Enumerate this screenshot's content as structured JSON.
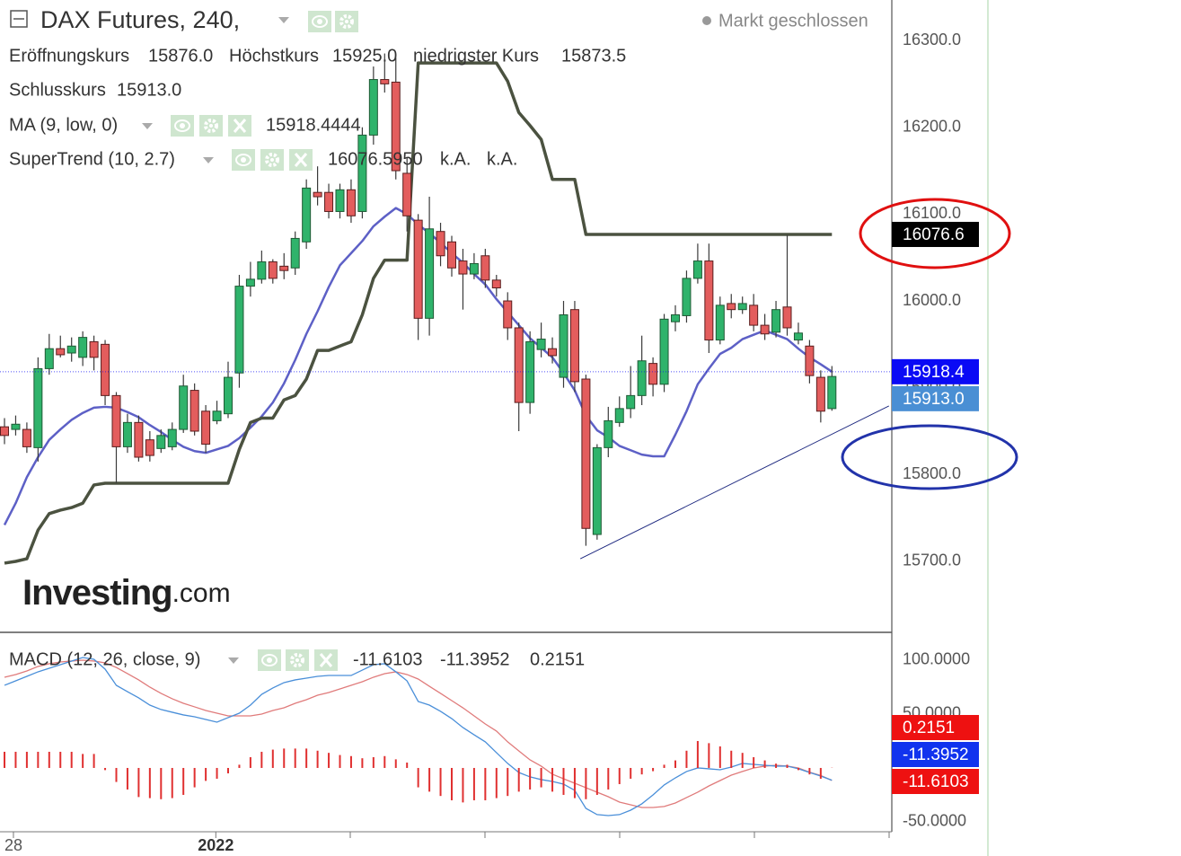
{
  "chart_data": [
    {
      "type": "candlestick",
      "title": "DAX Futures, 240,",
      "status": "Markt geschlossen",
      "watermark": {
        "brand": "Investing",
        "suffix": ".com"
      },
      "legend": [
        {
          "name": "Eröffnungskurs",
          "value": "15876.0"
        },
        {
          "name": "Höchstkurs",
          "value": "15925.0"
        },
        {
          "name": "niedrigster Kurs",
          "value": "15873.5"
        },
        {
          "name": "Schlusskurs",
          "value": "15913.0"
        }
      ],
      "legend_value_color": "#24602c",
      "up_color": "#2fb36b",
      "down_color": "#e35d5d",
      "open": [
        15855,
        15852,
        15852,
        15831,
        15922,
        15945,
        15940,
        15935,
        15953,
        15950,
        15891,
        15832,
        15860,
        15840,
        15830,
        15832,
        15852,
        15897,
        15873,
        15862,
        15870,
        15917,
        16017,
        16025,
        16045,
        16040,
        16038,
        16068,
        16125,
        16125,
        16103,
        16128,
        16103,
        16191,
        16255,
        16252,
        16147,
        16093,
        15980,
        16080,
        16068,
        16046,
        16031,
        16052,
        16024,
        16000,
        15969,
        15883,
        15944,
        15945,
        15912,
        15990,
        15910,
        15731,
        15831,
        15860,
        15876,
        15891,
        15928,
        15904,
        15976,
        15983,
        16026,
        16046,
        15955,
        15997,
        15990,
        15995,
        15972,
        15964,
        15993,
        15955,
        15948,
        15912,
        15876
      ],
      "high": [
        15865,
        15868,
        15860,
        15935,
        15962,
        15960,
        15958,
        15965,
        15960,
        15955,
        15895,
        15870,
        15868,
        15850,
        15852,
        15860,
        15915,
        15905,
        15880,
        15885,
        15930,
        16030,
        16045,
        16058,
        16048,
        16055,
        16080,
        16140,
        16155,
        16135,
        16135,
        16140,
        16200,
        16270,
        16285,
        16280,
        16165,
        16100,
        16120,
        16090,
        16075,
        16060,
        16055,
        16060,
        16030,
        16010,
        15975,
        15965,
        15975,
        15958,
        16000,
        16000,
        15915,
        15835,
        15878,
        15890,
        15925,
        15960,
        15935,
        15985,
        15995,
        16035,
        16066,
        16066,
        16005,
        16008,
        16005,
        16008,
        15985,
        16000,
        16076,
        15975,
        15955,
        15920,
        15925
      ],
      "low": [
        15835,
        15845,
        15825,
        15815,
        15915,
        15935,
        15930,
        15925,
        15920,
        15880,
        15790,
        15825,
        15815,
        15815,
        15825,
        15828,
        15848,
        15845,
        15825,
        15858,
        15865,
        15900,
        16005,
        16020,
        16020,
        16025,
        16030,
        16060,
        16110,
        16095,
        16095,
        16090,
        16095,
        16180,
        16240,
        16140,
        16080,
        15955,
        15960,
        16040,
        16028,
        15990,
        16025,
        16015,
        16005,
        15955,
        15850,
        15870,
        15935,
        15928,
        15900,
        15895,
        15718,
        15725,
        15820,
        15855,
        15865,
        15880,
        15890,
        15895,
        15965,
        15975,
        16020,
        15940,
        15950,
        15980,
        15985,
        15965,
        15955,
        15958,
        15960,
        15950,
        15905,
        15860,
        15873.5
      ],
      "close": [
        15845,
        15858,
        15832,
        15922,
        15945,
        15938,
        15948,
        15958,
        15935,
        15891,
        15832,
        15860,
        15820,
        15822,
        15845,
        15852,
        15902,
        15850,
        15835,
        15873,
        15912,
        16017,
        16025,
        16045,
        16026,
        16035,
        16072,
        16130,
        16120,
        16103,
        16128,
        16098,
        16191,
        16255,
        16250,
        16150,
        16098,
        15980,
        16083,
        16052,
        16038,
        16031,
        16043,
        16024,
        16015,
        15969,
        15883,
        15953,
        15956,
        15937,
        15984,
        15907,
        15738,
        15831,
        15862,
        15876,
        15891,
        15931,
        15904,
        15979,
        15984,
        16026,
        16046,
        15955,
        15995,
        15990,
        15997,
        15972,
        15962,
        15990,
        15969,
        15963,
        15914,
        15873,
        15913
      ],
      "series": [
        {
          "name": "MA (9, low, 0)",
          "color": "#5d60c6",
          "width": 2.5,
          "legend_values": [
            "15918.4444"
          ],
          "legend_colors": [
            "#1a1ad0"
          ],
          "values": [
            15742,
            15767,
            15797,
            15820,
            15840,
            15852,
            15863,
            15871,
            15877,
            15878,
            15877,
            15872,
            15866,
            15857,
            15849,
            15840,
            15832,
            15827,
            15825,
            15829,
            15833,
            15842,
            15854,
            15867,
            15883,
            15905,
            15932,
            15962,
            15988,
            16016,
            16041,
            16055,
            16069,
            16086,
            16097,
            16107,
            16100,
            16088,
            16078,
            16067,
            16055,
            16044,
            16031,
            16019,
            16002,
            15987,
            15972,
            15957,
            15946,
            15935,
            15917,
            15897,
            15868,
            15851,
            15843,
            15833,
            15828,
            15823,
            15821,
            15821,
            15846,
            15873,
            15904,
            15922,
            15939,
            15946,
            15956,
            15961,
            15966,
            15961,
            15956,
            15945,
            15935,
            15927,
            15918.4444
          ]
        },
        {
          "name": "SuperTrend (10, 2.7)",
          "color": "#4b5240",
          "width": 3.5,
          "legend_values": [
            "16076.5950",
            "k.A.",
            "k.A."
          ],
          "legend_colors": [
            "#111111",
            "#555555",
            "#555555"
          ],
          "values": [
            15698,
            15700,
            15703,
            15736,
            15755,
            15759,
            15762,
            15767,
            15788,
            15790,
            15790,
            15790,
            15790,
            15790,
            15790,
            15790,
            15790,
            15790,
            15790,
            15790,
            15790,
            15829,
            15860,
            15865,
            15865,
            15886,
            15891,
            15910,
            15943,
            15943,
            15948,
            15953,
            15984,
            16026,
            16047,
            16047,
            16047,
            16274,
            16274,
            16274,
            16274,
            16274,
            16274,
            16274,
            16274,
            16253,
            16217,
            16202,
            16186,
            16140,
            16140,
            16140,
            16076.595,
            16076.595,
            16076.595,
            16076.595,
            16076.595,
            16076.595,
            16076.595,
            16076.595,
            16076.595,
            16076.595,
            16076.595,
            16076.595,
            16076.595,
            16076.595,
            16076.595,
            16076.595,
            16076.595,
            16076.595,
            16076.595,
            16076.595,
            16076.595,
            16076.595,
            16076.595
          ]
        }
      ],
      "trendline": {
        "x": [
          51.5,
          79.1
        ],
        "values": [
          15703,
          15879
        ],
        "color": "#1f2a80"
      },
      "ylim": [
        15619.3,
        16346.6
      ],
      "yticks": [
        {
          "value": 15700,
          "label": "15700.0"
        },
        {
          "value": 15800,
          "label": "15800.0"
        },
        {
          "value": 15900,
          "label": "15900.0"
        },
        {
          "value": 16000,
          "label": "16000.0"
        },
        {
          "value": 16100,
          "label": "16100.0"
        },
        {
          "value": 16200,
          "label": "16200.0"
        },
        {
          "value": 16300,
          "label": "16300.0"
        }
      ],
      "xticks": [
        {
          "value": 0.8,
          "label": "28"
        },
        {
          "value": 18.9,
          "label": "2022"
        }
      ],
      "price_tags": [
        {
          "value": 16076.595,
          "label": "16076.6",
          "color": "#000000"
        },
        {
          "value": 15918.4444,
          "label": "15918.4",
          "color": "#0a0af5",
          "guide": true
        },
        {
          "value": 15913,
          "label": "15913.0",
          "color": "#4a8fd4"
        }
      ]
    },
    {
      "type": "macd",
      "title": "MACD (12, 26, close, 9)",
      "series": [
        {
          "kind": "line",
          "color": "#e07b7b",
          "legend_values": [
            "-11.6103"
          ],
          "legend_colors": [
            "#e01010"
          ],
          "values": [
            84.2,
            86.7,
            90,
            94.2,
            96.7,
            98.3,
            99.2,
            100,
            99.2,
            97.5,
            93.3,
            87.5,
            81.7,
            75,
            69.2,
            64.2,
            60,
            56.7,
            53.3,
            50.8,
            48.3,
            48.3,
            48.3,
            50,
            53.3,
            55.8,
            60,
            63.3,
            67.5,
            70,
            73.3,
            76.7,
            80,
            84.2,
            87.5,
            89.2,
            86.7,
            82.5,
            75.8,
            69.2,
            62.5,
            55.8,
            48.3,
            40.8,
            34.2,
            24.2,
            15.8,
            7.5,
            1.7,
            -5.8,
            -10,
            -14.2,
            -18.3,
            -22.5,
            -26.7,
            -31.7,
            -34.2,
            -36.7,
            -36.7,
            -35.8,
            -32.5,
            -27.5,
            -22.5,
            -16.7,
            -11.7,
            -6.7,
            -3.3,
            0,
            1.7,
            2.5,
            1.7,
            0,
            -4,
            -7,
            -11.6103
          ]
        },
        {
          "kind": "line",
          "color": "#4a8fd9",
          "legend_values": [
            "-11.3952"
          ],
          "legend_colors": [
            "#1010e0"
          ],
          "values": [
            76.7,
            80.8,
            85,
            89.2,
            92.5,
            95.8,
            99.2,
            102.5,
            100.8,
            91.7,
            76.7,
            70.8,
            65,
            58.3,
            54.2,
            51.7,
            49.2,
            47.5,
            45,
            42.5,
            46.7,
            50.8,
            58.3,
            68.3,
            74.2,
            79.2,
            81.7,
            83.3,
            85,
            85.8,
            85.8,
            85.8,
            90.8,
            95.8,
            96.7,
            89.2,
            80.8,
            61.7,
            58.3,
            52.5,
            45.8,
            37.5,
            30.8,
            24.2,
            14.2,
            4.2,
            -4.2,
            -8.3,
            -10.8,
            -12.5,
            -15,
            -20.8,
            -37.5,
            -43.3,
            -44.2,
            -43.3,
            -39.2,
            -33.3,
            -25,
            -15.8,
            -9.2,
            -3.3,
            0,
            -0.8,
            -1.7,
            0.8,
            4.2,
            3.3,
            2.5,
            1.7,
            1.7,
            -0.8,
            -4.2,
            -7.5,
            -11.3952
          ]
        },
        {
          "kind": "histogram",
          "color": "#e03030",
          "legend_values": [
            "0.2151"
          ],
          "legend_colors": [
            "#e01010"
          ],
          "values": [
            15,
            15,
            15,
            15,
            15,
            15,
            15,
            13,
            13,
            -2,
            -13,
            -20,
            -27,
            -28,
            -29,
            -28,
            -25,
            -18,
            -12,
            -10,
            -5,
            3,
            10,
            15,
            17,
            18,
            18,
            18,
            16,
            14,
            12,
            11,
            9,
            10,
            11,
            8,
            5,
            -18,
            -22,
            -26,
            -30,
            -32,
            -30,
            -30,
            -28,
            -26,
            -22,
            -20,
            -18,
            -22,
            -25,
            -28,
            -29,
            -25,
            -20,
            -15,
            -10,
            -6,
            -3,
            3,
            7,
            16,
            25,
            23,
            20,
            16,
            14,
            10,
            7,
            4,
            3,
            -2,
            -6,
            -10,
            0.2151
          ]
        }
      ],
      "ylim": [
        -54.2,
        125
      ],
      "yticks": [
        {
          "value": 100,
          "label": "100.0000"
        },
        {
          "value": 50,
          "label": "50.0000"
        },
        {
          "value": -50,
          "label": "-50.0000"
        }
      ],
      "price_tags": [
        {
          "value": 0.2151,
          "label": "0.2151",
          "color": "#ee1111"
        },
        {
          "value": -11.3952,
          "label": "-11.3952",
          "color": "#1133ee"
        },
        {
          "value": -11.6103,
          "label": "-11.6103",
          "color": "#ee1111"
        }
      ]
    }
  ]
}
